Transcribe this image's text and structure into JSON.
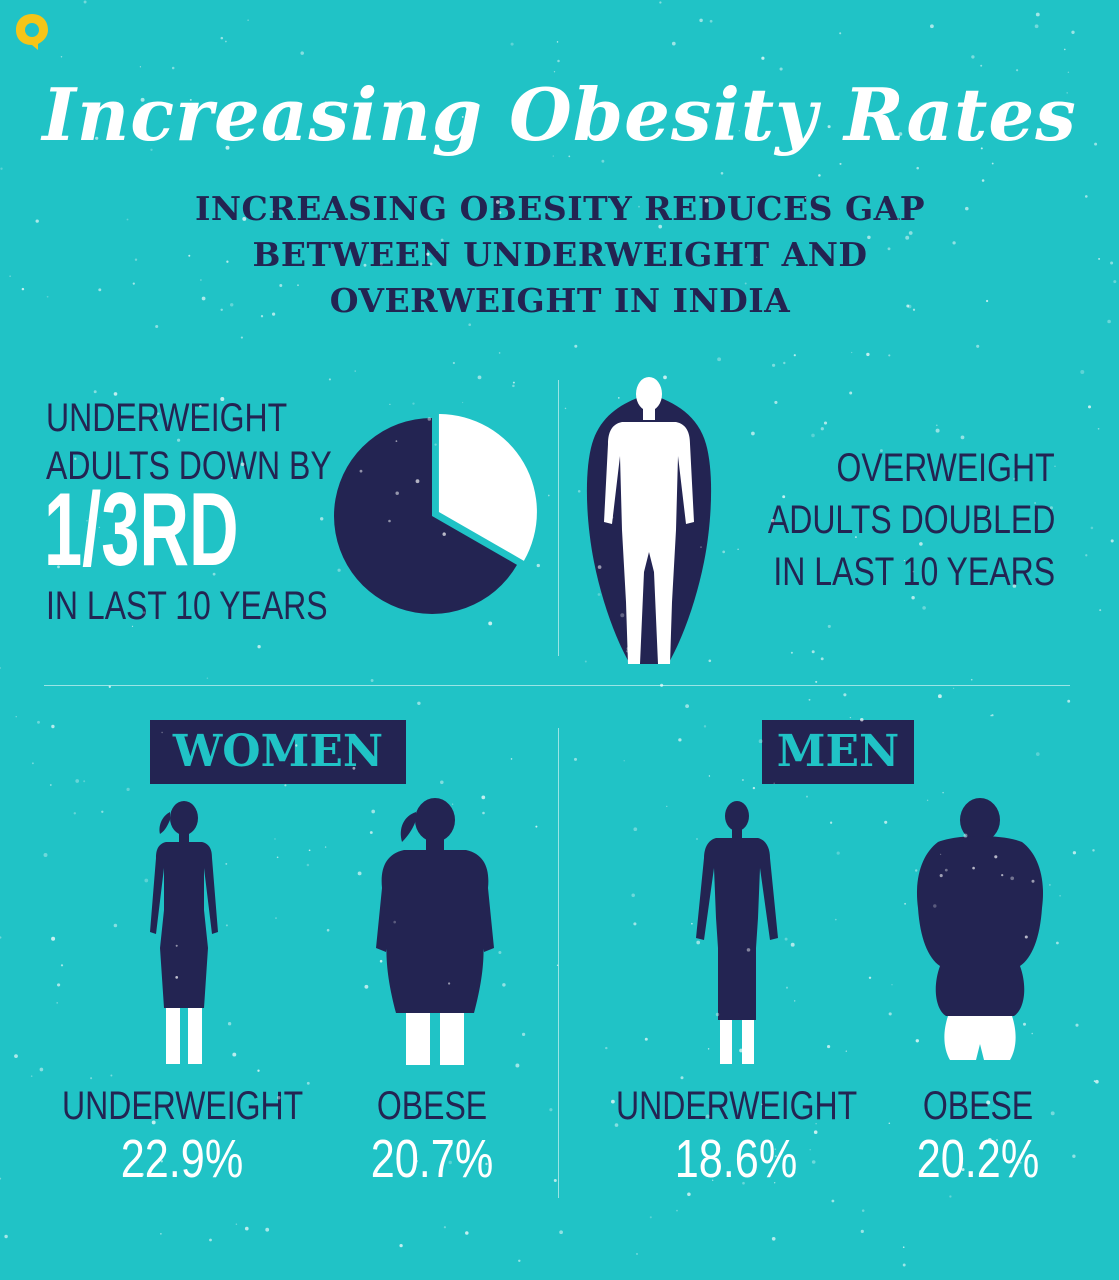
{
  "title": "Increasing Obesity Rates",
  "subtitle": {
    "line1": "INCREASING OBESITY REDUCES GAP",
    "line2": "BETWEEN UNDERWEIGHT AND",
    "line3": "OVERWEIGHT IN INDIA"
  },
  "underweight_summary": {
    "line1": "UNDERWEIGHT",
    "line2": "ADULTS DOWN BY",
    "stat": "1/3RD",
    "line3": "IN LAST 10 YEARS",
    "pie_fraction": 0.333
  },
  "overweight_summary": {
    "line1": "OVERWEIGHT",
    "line2": "ADULTS DOUBLED",
    "line3": "IN LAST 10 YEARS"
  },
  "women": {
    "heading": "WOMEN",
    "underweight_label": "UNDERWEIGHT",
    "underweight_value": "22.9%",
    "obese_label": "OBESE",
    "obese_value": "20.7%"
  },
  "men": {
    "heading": "MEN",
    "underweight_label": "UNDERWEIGHT",
    "underweight_value": "18.6%",
    "obese_label": "OBESE",
    "obese_value": "20.2%"
  },
  "colors": {
    "background": "#20c3c6",
    "navy": "#232452",
    "white": "#ffffff",
    "logo": "#f5c518"
  },
  "icons": [
    "quint-logo-icon",
    "pie-chart-icon",
    "person-silhouette-icon",
    "woman-silhouette-icon",
    "man-silhouette-icon"
  ]
}
